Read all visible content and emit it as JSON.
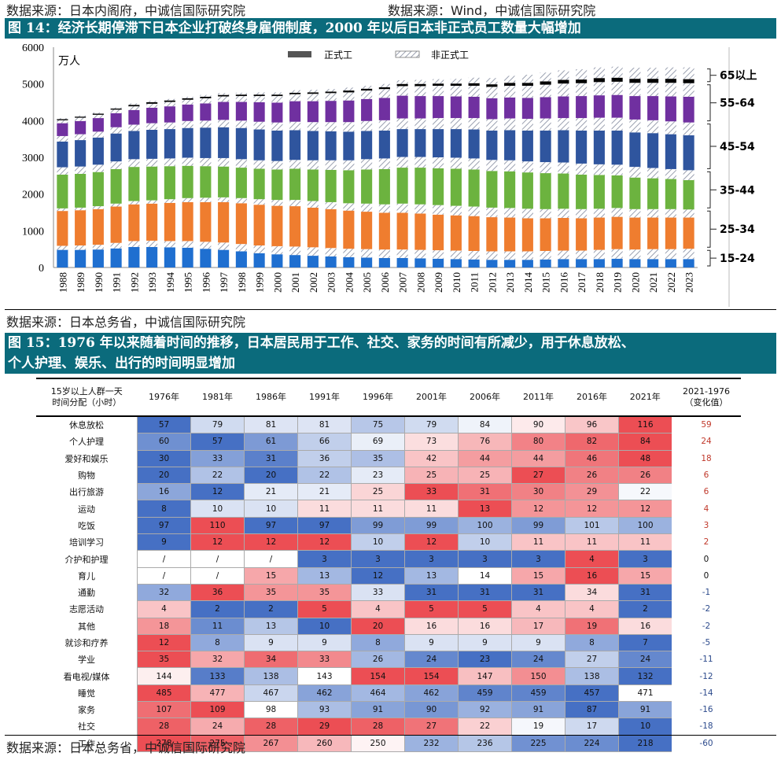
{
  "source_top_left": "数据来源：日本内阁府，中诚信国际研究院",
  "source_top_right": "数据来源：Wind，中诚信国际研究院",
  "fig14_title": "图 14：经济长期停滞下日本企业打破终身雇佣制度，2000 年以后日本非正式员工数量大幅增加",
  "fig14_source": "数据来源：日本总务省，中诚信国际研究院",
  "fig15_title_line1": "图 15：1976 年以来随着时间的推移，日本居民用于工作、社交、家务的时间有所减少，用于休息放松、",
  "fig15_title_line2": "个人护理、娱乐、出行的时间明显增加",
  "fig15_source": "数据来源：日本总务省，中诚信国际研究院",
  "colors": {
    "band": "#0b6b7c",
    "g1524": "#1f6fd0",
    "g2534": "#ef7d2f",
    "g3544": "#6cb33f",
    "g4554": "#2f559e",
    "g5564": "#7030a0",
    "g65": "#000000"
  },
  "chart_data": [
    {
      "type": "bar",
      "stacked": true,
      "title": "",
      "unit_label": "万人",
      "ylim": [
        0,
        6000
      ],
      "yticks": [
        0,
        1000,
        2000,
        3000,
        4000,
        5000,
        6000
      ],
      "legend": [
        "正式工",
        "非正式工"
      ],
      "legend_position": "top-center",
      "age_group_labels": [
        "15-24",
        "25-34",
        "35-44",
        "45-54",
        "55-64",
        "65以上"
      ],
      "categories": [
        "1988",
        "1989",
        "1990",
        "1991",
        "1992",
        "1993",
        "1994",
        "1995",
        "1996",
        "1997",
        "1998",
        "1999",
        "2000",
        "2001",
        "2002",
        "2003",
        "2004",
        "2005",
        "2006",
        "2007",
        "2008",
        "2009",
        "2010",
        "2011",
        "2012",
        "2013",
        "2014",
        "2015",
        "2016",
        "2017",
        "2018",
        "2019",
        "2020",
        "2021",
        "2022",
        "2023"
      ],
      "series": [
        {
          "group": "15-24",
          "type": "正式工",
          "values": [
            480,
            480,
            490,
            520,
            560,
            560,
            550,
            540,
            510,
            480,
            440,
            390,
            360,
            340,
            320,
            300,
            280,
            270,
            260,
            260,
            250,
            240,
            230,
            220,
            210,
            210,
            210,
            220,
            230,
            230,
            230,
            240,
            230,
            230,
            230,
            230
          ]
        },
        {
          "group": "15-24",
          "type": "非正式工",
          "values": [
            110,
            120,
            130,
            150,
            160,
            170,
            170,
            180,
            190,
            200,
            200,
            210,
            220,
            230,
            230,
            230,
            230,
            230,
            230,
            230,
            230,
            230,
            230,
            230,
            230,
            230,
            230,
            230,
            230,
            230,
            250,
            260,
            260,
            270,
            270,
            280
          ]
        },
        {
          "group": "25-34",
          "type": "正式工",
          "values": [
            950,
            960,
            970,
            990,
            1000,
            1010,
            1040,
            1060,
            1080,
            1100,
            1110,
            1110,
            1100,
            1100,
            1080,
            1060,
            1040,
            1020,
            1000,
            1000,
            990,
            970,
            960,
            950,
            930,
            920,
            900,
            890,
            890,
            880,
            880,
            880,
            870,
            860,
            860,
            850
          ]
        },
        {
          "group": "25-34",
          "type": "非正式工",
          "values": [
            70,
            70,
            80,
            80,
            90,
            90,
            100,
            110,
            120,
            130,
            140,
            150,
            160,
            170,
            180,
            190,
            200,
            220,
            230,
            250,
            250,
            260,
            260,
            260,
            260,
            260,
            260,
            250,
            250,
            250,
            240,
            240,
            230,
            230,
            230,
            220
          ]
        },
        {
          "group": "35-44",
          "type": "正式工",
          "values": [
            920,
            920,
            930,
            940,
            930,
            920,
            900,
            880,
            860,
            840,
            830,
            830,
            830,
            850,
            860,
            880,
            900,
            930,
            960,
            980,
            1000,
            1000,
            1010,
            1010,
            1000,
            1000,
            990,
            980,
            960,
            940,
            920,
            890,
            860,
            840,
            820,
            800
          ]
        },
        {
          "group": "35-44",
          "type": "非正式工",
          "values": [
            200,
            200,
            200,
            210,
            210,
            210,
            210,
            220,
            220,
            230,
            230,
            230,
            230,
            240,
            250,
            260,
            270,
            280,
            290,
            290,
            290,
            300,
            300,
            300,
            300,
            300,
            300,
            300,
            300,
            300,
            290,
            290,
            290,
            280,
            270,
            270
          ]
        },
        {
          "group": "45-54",
          "type": "正式工",
          "values": [
            700,
            720,
            740,
            760,
            770,
            790,
            800,
            810,
            830,
            840,
            850,
            840,
            830,
            810,
            800,
            790,
            780,
            770,
            760,
            760,
            760,
            770,
            780,
            790,
            800,
            820,
            840,
            860,
            880,
            900,
            920,
            930,
            940,
            950,
            950,
            950
          ]
        },
        {
          "group": "45-54",
          "type": "非正式工",
          "values": [
            150,
            160,
            160,
            170,
            170,
            180,
            180,
            190,
            190,
            200,
            200,
            210,
            220,
            230,
            240,
            250,
            260,
            270,
            280,
            290,
            290,
            300,
            300,
            310,
            310,
            320,
            320,
            330,
            330,
            340,
            350,
            350,
            350,
            350,
            350,
            350
          ]
        },
        {
          "group": "55-64",
          "type": "正式工",
          "values": [
            350,
            360,
            370,
            380,
            400,
            420,
            440,
            450,
            470,
            490,
            510,
            530,
            540,
            560,
            570,
            580,
            590,
            600,
            610,
            620,
            610,
            600,
            590,
            580,
            570,
            570,
            570,
            580,
            590,
            600,
            610,
            620,
            640,
            660,
            680,
            700
          ]
        },
        {
          "group": "55-64",
          "type": "非正式工",
          "values": [
            80,
            90,
            90,
            100,
            100,
            110,
            120,
            130,
            140,
            150,
            160,
            170,
            180,
            190,
            200,
            210,
            220,
            230,
            240,
            260,
            270,
            280,
            290,
            300,
            310,
            320,
            330,
            340,
            350,
            350,
            360,
            360,
            360,
            360,
            370,
            370
          ]
        },
        {
          "group": "65以上",
          "type": "正式工",
          "values": [
            30,
            30,
            30,
            30,
            40,
            40,
            40,
            40,
            40,
            40,
            40,
            40,
            40,
            40,
            40,
            40,
            50,
            50,
            50,
            60,
            60,
            60,
            60,
            70,
            70,
            80,
            80,
            90,
            100,
            100,
            110,
            110,
            110,
            110,
            110,
            110
          ]
        },
        {
          "group": "65以上",
          "type": "非正式工",
          "values": [
            30,
            30,
            30,
            30,
            40,
            40,
            40,
            40,
            50,
            50,
            50,
            60,
            60,
            70,
            70,
            70,
            80,
            80,
            90,
            100,
            110,
            120,
            130,
            150,
            170,
            190,
            220,
            240,
            260,
            280,
            290,
            300,
            300,
            300,
            310,
            320
          ]
        }
      ]
    },
    {
      "type": "table",
      "corner_header": [
        "15岁以上人群一天",
        "时间分配（小时）"
      ],
      "columns": [
        "1976年",
        "1981年",
        "1986年",
        "1991年",
        "1996年",
        "2001年",
        "2006年",
        "2011年",
        "2016年",
        "2021年"
      ],
      "change_header": [
        "2021-1976",
        "（变化值）"
      ],
      "rows": [
        {
          "label": "休息放松",
          "values": [
            "57",
            "79",
            "81",
            "81",
            "75",
            "79",
            "84",
            "90",
            "96",
            "116"
          ],
          "change": "59"
        },
        {
          "label": "个人护理",
          "values": [
            "60",
            "57",
            "61",
            "66",
            "69",
            "73",
            "76",
            "80",
            "82",
            "84"
          ],
          "change": "24"
        },
        {
          "label": "爱好和娱乐",
          "values": [
            "30",
            "33",
            "31",
            "36",
            "35",
            "42",
            "44",
            "44",
            "46",
            "48"
          ],
          "change": "18"
        },
        {
          "label": "购物",
          "values": [
            "20",
            "22",
            "20",
            "22",
            "23",
            "25",
            "25",
            "27",
            "26",
            "26"
          ],
          "change": "6"
        },
        {
          "label": "出行旅游",
          "values": [
            "16",
            "12",
            "21",
            "21",
            "25",
            "33",
            "31",
            "30",
            "29",
            "22"
          ],
          "change": "6"
        },
        {
          "label": "运动",
          "values": [
            "8",
            "10",
            "10",
            "11",
            "11",
            "11",
            "13",
            "12",
            "12",
            "12"
          ],
          "change": "4"
        },
        {
          "label": "吃饭",
          "values": [
            "97",
            "110",
            "97",
            "97",
            "99",
            "99",
            "100",
            "99",
            "101",
            "100"
          ],
          "change": "3"
        },
        {
          "label": "培训学习",
          "values": [
            "9",
            "12",
            "12",
            "12",
            "10",
            "12",
            "10",
            "11",
            "11",
            "11"
          ],
          "change": "2"
        },
        {
          "label": "介护和护理",
          "values": [
            "/",
            "/",
            "/",
            "3",
            "3",
            "3",
            "3",
            "3",
            "4",
            "3"
          ],
          "change": "0"
        },
        {
          "label": "育儿",
          "values": [
            "/",
            "/",
            "15",
            "13",
            "12",
            "13",
            "14",
            "15",
            "16",
            "15"
          ],
          "change": "0"
        },
        {
          "label": "通勤",
          "values": [
            "32",
            "36",
            "35",
            "35",
            "33",
            "31",
            "31",
            "31",
            "34",
            "31"
          ],
          "change": "-1"
        },
        {
          "label": "志愿活动",
          "values": [
            "4",
            "2",
            "2",
            "5",
            "4",
            "5",
            "5",
            "4",
            "4",
            "2"
          ],
          "change": "-2"
        },
        {
          "label": "其他",
          "values": [
            "18",
            "11",
            "13",
            "10",
            "20",
            "16",
            "16",
            "17",
            "19",
            "16"
          ],
          "change": "-2"
        },
        {
          "label": "就诊和疗养",
          "values": [
            "12",
            "8",
            "9",
            "9",
            "8",
            "9",
            "9",
            "9",
            "8",
            "7"
          ],
          "change": "-5"
        },
        {
          "label": "学业",
          "values": [
            "35",
            "32",
            "34",
            "33",
            "26",
            "24",
            "23",
            "24",
            "27",
            "24"
          ],
          "change": "-11"
        },
        {
          "label": "看电视/媒体",
          "values": [
            "144",
            "133",
            "138",
            "143",
            "154",
            "154",
            "147",
            "150",
            "138",
            "132"
          ],
          "change": "-12"
        },
        {
          "label": "睡觉",
          "values": [
            "485",
            "477",
            "467",
            "462",
            "464",
            "462",
            "459",
            "459",
            "457",
            "471"
          ],
          "change": "-14"
        },
        {
          "label": "家务",
          "values": [
            "107",
            "109",
            "98",
            "93",
            "91",
            "90",
            "92",
            "91",
            "87",
            "91"
          ],
          "change": "-16"
        },
        {
          "label": "社交",
          "values": [
            "28",
            "24",
            "28",
            "29",
            "28",
            "27",
            "22",
            "19",
            "17",
            "10"
          ],
          "change": "-18"
        },
        {
          "label": "工作",
          "values": [
            "278",
            "275",
            "267",
            "260",
            "250",
            "232",
            "236",
            "225",
            "224",
            "218"
          ],
          "change": "-60"
        }
      ]
    }
  ]
}
